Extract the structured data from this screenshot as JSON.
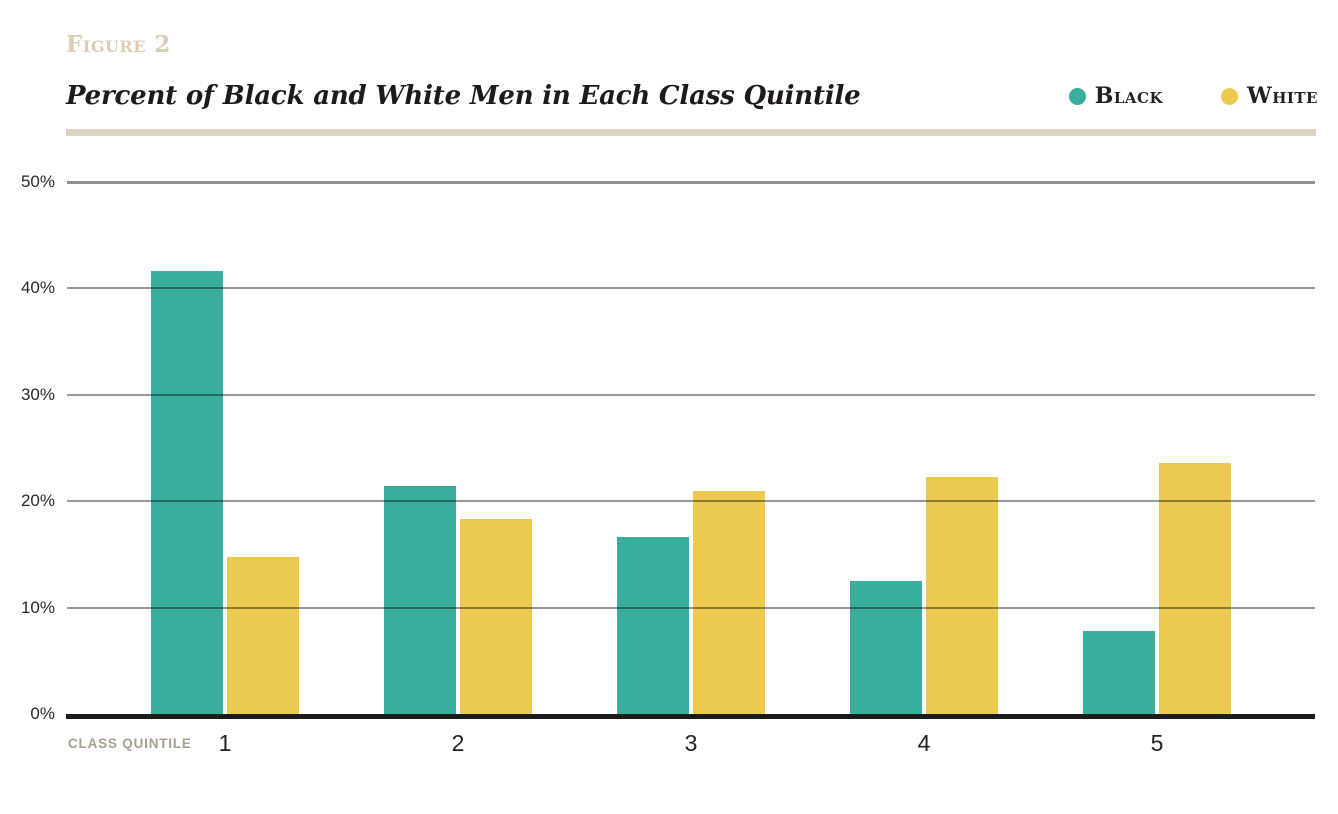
{
  "figure_label": "Figure 2",
  "title": "Percent of Black and White Men in Each Class Quintile",
  "x_axis_label": "CLASS QUINTILE",
  "colors": {
    "black_series": "#39ae9c",
    "white_series": "#ecc94f",
    "accent_tan": "#ddd3c1",
    "figure_label_tan": "#d9cdb4",
    "axis_line": "#1b1b1b"
  },
  "chart_data": {
    "type": "bar",
    "title": "Percent of Black and White Men in Each Class Quintile",
    "categories": [
      "1",
      "2",
      "3",
      "4",
      "5"
    ],
    "series": [
      {
        "name": "Black",
        "color": "#39ae9c",
        "values": [
          41.6,
          21.4,
          16.6,
          12.5,
          7.8
        ]
      },
      {
        "name": "White",
        "color": "#ecc94f",
        "values": [
          14.8,
          18.3,
          21.0,
          22.3,
          23.6
        ]
      }
    ],
    "xlabel": "CLASS QUINTILE",
    "ylabel": "",
    "ylim": [
      0,
      50
    ],
    "yticks": [
      "0%",
      "10%",
      "20%",
      "30%",
      "40%",
      "50%"
    ],
    "grid": true,
    "legend_position": "top-right"
  }
}
